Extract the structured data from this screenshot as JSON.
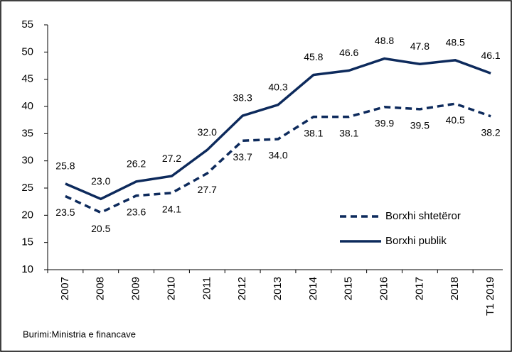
{
  "chart_data": {
    "type": "line",
    "categories": [
      "2007",
      "2008",
      "2009",
      "2010",
      "2011",
      "2012",
      "2013",
      "2014",
      "2015",
      "2016",
      "2017",
      "2018",
      "T1 2019"
    ],
    "series": [
      {
        "name": "Borxhi shtetëror",
        "color": "#0d2a5c",
        "linestyle": "dashed",
        "label_position": "below",
        "values": [
          23.5,
          20.5,
          23.6,
          24.1,
          27.7,
          33.7,
          34.0,
          38.1,
          38.1,
          39.9,
          39.5,
          40.5,
          38.2
        ],
        "value_labels": [
          "23.5",
          "20.5",
          "23.6",
          "24.1",
          "27.7",
          "33.7",
          "34.0",
          "38.1",
          "38.1",
          "39.9",
          "39.5",
          "40.5",
          "38.2"
        ]
      },
      {
        "name": "Borxhi publik",
        "color": "#0d2a5c",
        "linestyle": "solid",
        "label_position": "above",
        "values": [
          25.8,
          23.0,
          26.2,
          27.2,
          32.0,
          38.3,
          40.3,
          45.8,
          46.6,
          48.8,
          47.8,
          48.5,
          46.1
        ],
        "value_labels": [
          "25.8",
          "23.0",
          "26.2",
          "27.2",
          "32.0",
          "38.3",
          "40.3",
          "45.8",
          "46.6",
          "48.8",
          "47.8",
          "48.5",
          "46.1"
        ]
      }
    ],
    "ylim": [
      10,
      55
    ],
    "yticks": [
      10,
      15,
      20,
      25,
      30,
      35,
      40,
      45,
      50,
      55
    ],
    "legend": "lower right",
    "source": "Burimi:Ministria e financave"
  }
}
